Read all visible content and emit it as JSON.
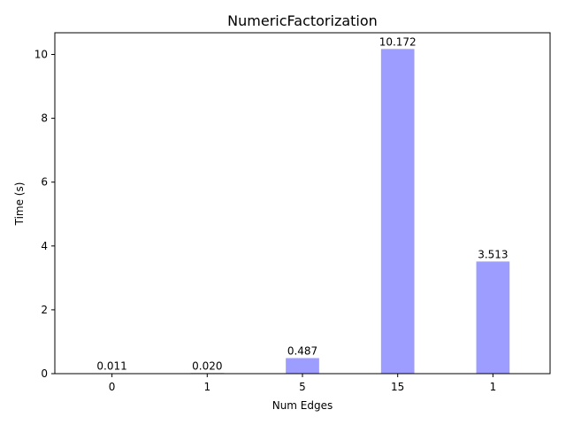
{
  "chart_data": {
    "type": "bar",
    "title": "NumericFactorization",
    "xlabel": "Num Edges",
    "ylabel": "Time (s)",
    "categories": [
      "0",
      "1",
      "5",
      "15",
      "1"
    ],
    "values": [
      0.011,
      0.02,
      0.487,
      10.172,
      3.513
    ],
    "value_labels": [
      "0.011",
      "0.020",
      "0.487",
      "10.172",
      "3.513"
    ],
    "ylim": [
      0,
      10.68
    ],
    "yticks": [
      0,
      2,
      4,
      6,
      8,
      10
    ],
    "grid": false,
    "legend": "none",
    "bar_color": "#9d9dff"
  }
}
